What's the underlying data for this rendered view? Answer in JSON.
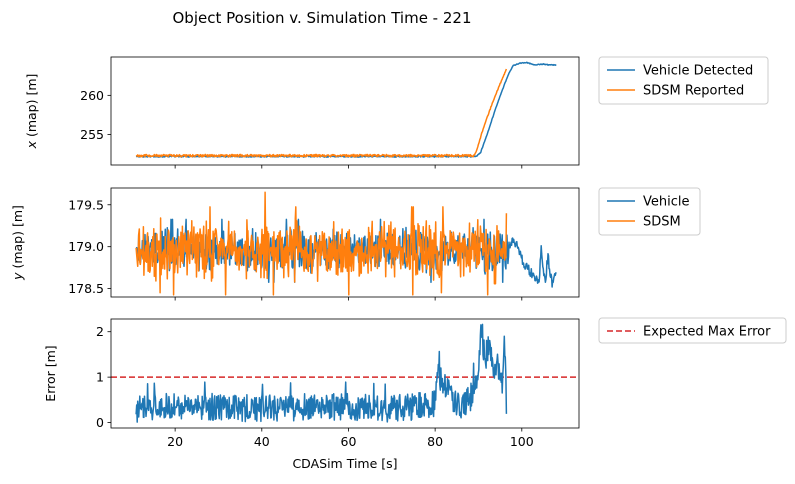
{
  "title": "Object Position v. Simulation Time - 221",
  "colors": {
    "blue": "#1f77b4",
    "orange": "#ff7f0e",
    "red": "#d62728"
  },
  "chart_data": [
    {
      "type": "line",
      "ylabel_pre": "x",
      "ylabel_post": " (map) [m]",
      "xlim": [
        5.2,
        113.2
      ],
      "ylim": [
        251.1,
        264.9
      ],
      "xticks": [
        20,
        40,
        60,
        80,
        100
      ],
      "xtick_labels": [
        "",
        "",
        "",
        "",
        ""
      ],
      "yticks": [
        255,
        260
      ],
      "ytick_labels": [
        "255",
        "260"
      ],
      "grid": false,
      "legend_position": "outside-right",
      "series": [
        {
          "name": "Vehicle Detected",
          "color": "#1f77b4",
          "noise": 0.18,
          "points": [
            [
              11,
              252.2
            ],
            [
              89.5,
              252.2
            ],
            [
              90.5,
              252.7
            ],
            [
              92,
              255
            ],
            [
              94,
              258.4
            ],
            [
              96,
              261.4
            ],
            [
              97,
              262.8
            ],
            [
              98,
              263.8
            ],
            [
              99.5,
              264.1
            ],
            [
              101,
              264.2
            ],
            [
              103,
              263.9
            ],
            [
              105,
              264.0
            ],
            [
              106,
              263.9
            ],
            [
              108,
              263.9
            ]
          ]
        },
        {
          "name": "SDSM Reported",
          "color": "#ff7f0e",
          "noise": 0.3,
          "points": [
            [
              11,
              252.3
            ],
            [
              89,
              252.3
            ],
            [
              89.6,
              253.0
            ],
            [
              91,
              255.6
            ],
            [
              93,
              258.7
            ],
            [
              95,
              261.5
            ],
            [
              96.5,
              263.4
            ]
          ]
        }
      ]
    },
    {
      "type": "line",
      "ylabel_pre": "y",
      "ylabel_post": " (map) [m]",
      "xlim": [
        5.2,
        113.2
      ],
      "ylim": [
        178.4,
        179.7
      ],
      "xticks": [
        20,
        40,
        60,
        80,
        100
      ],
      "xtick_labels": [
        "",
        "",
        "",
        "",
        ""
      ],
      "yticks": [
        178.5,
        179.0,
        179.5
      ],
      "ytick_labels": [
        "178.5",
        "179.0",
        "179.5"
      ],
      "grid": false,
      "legend_position": "outside-right",
      "series": [
        {
          "name": "Vehicle",
          "color": "#1f77b4",
          "center": 178.95,
          "spread": 0.25,
          "points": [
            [
              11,
              179.2
            ],
            [
              97,
              179.0
            ],
            [
              98,
              179.1
            ],
            [
              99,
              179.0
            ],
            [
              100,
              178.85
            ],
            [
              101,
              178.75
            ],
            [
              102,
              178.7
            ],
            [
              103,
              178.65
            ],
            [
              104,
              178.6
            ],
            [
              104.5,
              179.0
            ],
            [
              105,
              178.7
            ],
            [
              105.5,
              178.6
            ],
            [
              106,
              178.9
            ],
            [
              106.5,
              178.7
            ],
            [
              107,
              178.55
            ],
            [
              107.5,
              178.7
            ],
            [
              108,
              178.72
            ]
          ]
        },
        {
          "name": "SDSM",
          "color": "#ff7f0e",
          "center": 178.95,
          "spread": 0.35,
          "points": [
            [
              11,
              179.2
            ],
            [
              96.5,
              179.0
            ]
          ],
          "peaks": [
            [
              40.7,
              179.65
            ],
            [
              16.5,
              178.45
            ],
            [
              81.5,
              178.45
            ],
            [
              97,
              179.4
            ]
          ]
        }
      ]
    },
    {
      "type": "line",
      "ylabel_pre": "",
      "ylabel_post": "Error [m]",
      "xlabel": "CDASim Time [s]",
      "xlim": [
        5.2,
        113.2
      ],
      "ylim": [
        -0.12,
        2.28
      ],
      "xticks": [
        20,
        40,
        60,
        80,
        100
      ],
      "xtick_labels": [
        "20",
        "40",
        "60",
        "80",
        "100"
      ],
      "yticks": [
        0,
        1,
        2
      ],
      "ytick_labels": [
        "0",
        "1",
        "2"
      ],
      "grid": false,
      "legend_position": "outside-right",
      "hline": {
        "name": "Expected Max Error",
        "value": 1.0,
        "color": "#d62728",
        "style": "dashed"
      },
      "series": [
        {
          "name": "Error",
          "color": "#1f77b4",
          "points": [
            [
              11,
              0.3
            ],
            [
              20,
              0.35
            ],
            [
              30,
              0.35
            ],
            [
              40,
              0.3
            ],
            [
              50,
              0.35
            ],
            [
              60,
              0.35
            ],
            [
              70,
              0.3
            ],
            [
              80,
              0.4
            ],
            [
              80.5,
              1.1
            ],
            [
              85,
              0.35
            ],
            [
              88,
              0.5
            ],
            [
              89,
              0.8
            ],
            [
              90,
              1.0
            ],
            [
              90.6,
              2.15
            ],
            [
              91.5,
              1.4
            ],
            [
              92.5,
              1.7
            ],
            [
              93.5,
              1.0
            ],
            [
              94.5,
              1.3
            ],
            [
              95.5,
              0.9
            ],
            [
              96,
              1.9
            ],
            [
              96.5,
              0.25
            ]
          ],
          "noise": 0.3
        }
      ]
    }
  ]
}
